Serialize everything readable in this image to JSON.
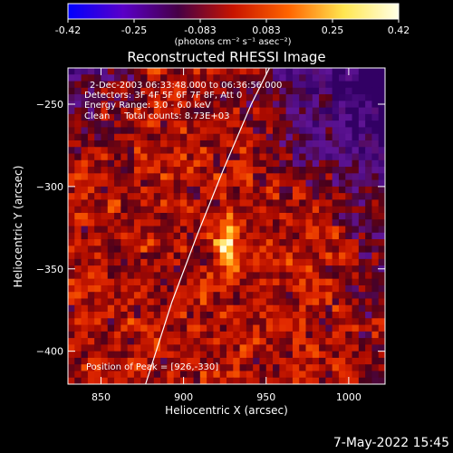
{
  "chart_data": {
    "type": "heatmap",
    "title": "Reconstructed RHESSI Image",
    "xlabel": "Heliocentric X (arcsec)",
    "ylabel": "Heliocentric Y (arcsec)",
    "xlim": [
      830,
      1022
    ],
    "ylim": [
      -420,
      -228
    ],
    "x_ticks": [
      850,
      900,
      950,
      1000
    ],
    "y_ticks": [
      -400,
      -350,
      -300,
      -250
    ],
    "colorbar": {
      "ticks": [
        "-0.42",
        "-0.25",
        "-0.083",
        "0.083",
        "0.25",
        "0.42"
      ],
      "range": [
        -0.42,
        0.42
      ],
      "unit_label": "(photons cm⁻² s⁻¹ asec⁻²)",
      "colors": [
        "#0000ff",
        "#5a00c8",
        "#460046",
        "#c81400",
        "#ff6400",
        "#ffe650",
        "#ffffe6"
      ]
    },
    "info_lines": [
      "2-Dec-2003 06:33:48.000 to 06:36:56.000",
      "Detectors: 3F 4F 5F 6F 7F 8F, Att 0",
      "Energy Range: 3.0 - 6.0 keV",
      "Clean     Total counts: 8.73E+03"
    ],
    "peak_label": "Position of Peak = [926,-330]",
    "peak": {
      "x": 926,
      "y": -330,
      "value": 0.42
    },
    "limb_points": [
      [
        877,
        -420
      ],
      [
        893,
        -370
      ],
      [
        908,
        -330
      ],
      [
        924,
        -290
      ],
      [
        941,
        -250
      ],
      [
        952,
        -228
      ]
    ],
    "timestamp": "7-May-2022 15:45"
  }
}
